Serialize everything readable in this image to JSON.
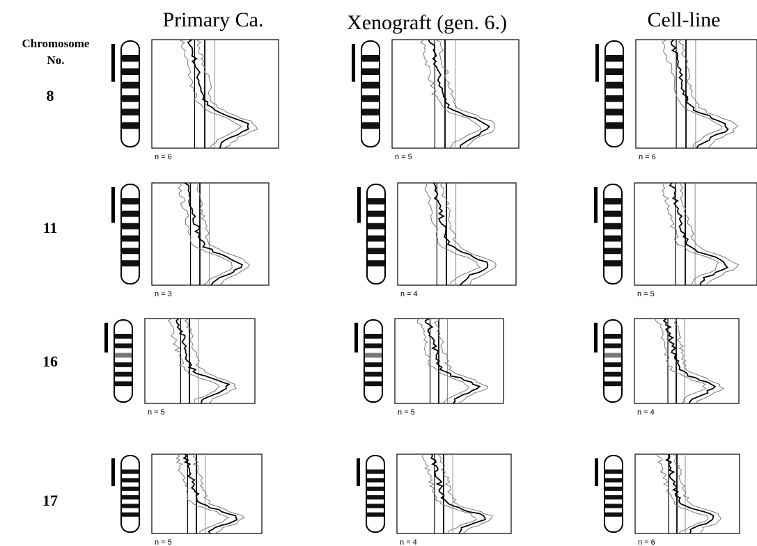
{
  "columns": [
    "Primary Ca.",
    "Xenograft (gen. 6.)",
    "Cell-line"
  ],
  "row_header": [
    "Chromosome",
    "No."
  ],
  "rows": [
    {
      "chromosome": "8",
      "panels": [
        "n = 6",
        "n = 5",
        "n = 6"
      ]
    },
    {
      "chromosome": "11",
      "panels": [
        "n = 3",
        "n = 4",
        "n = 5"
      ]
    },
    {
      "chromosome": "16",
      "panels": [
        "n = 5",
        "n = 5",
        "n = 4"
      ]
    },
    {
      "chromosome": "17",
      "panels": [
        "n = 5",
        "n = 4",
        "n = 6"
      ]
    }
  ]
}
